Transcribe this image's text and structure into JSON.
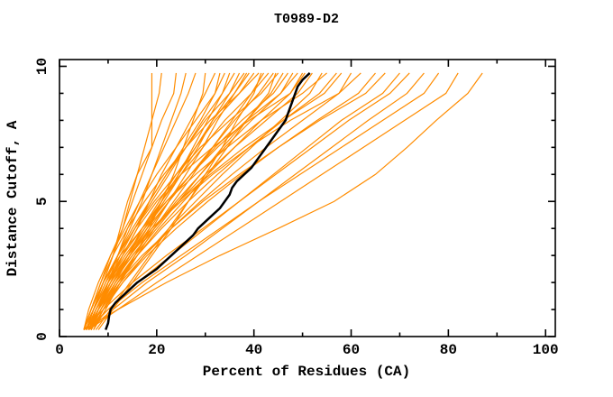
{
  "chart_data": {
    "type": "line",
    "title": "T0989-D2",
    "xlabel": "Percent of Residues (CA)",
    "ylabel": "Distance Cutoff, A",
    "xlim": [
      0,
      102
    ],
    "ylim": [
      0,
      10.25
    ],
    "grid": "off",
    "legend": "none",
    "x_major_ticks": [
      0,
      20,
      40,
      60,
      80,
      100
    ],
    "x_minor_ticks": [
      10,
      30,
      50,
      70,
      90
    ],
    "y_major_ticks": [
      0,
      5,
      10
    ],
    "y_minor_ticks": [
      1,
      2,
      3,
      4,
      6,
      7,
      8,
      9
    ],
    "colors": {
      "model_lines": "#ff8c00",
      "reference_line": "#000000",
      "frame": "#000000",
      "background": "#ffffff"
    },
    "cutoffs": [
      0.25,
      1,
      2,
      3,
      4,
      5,
      6,
      7,
      8,
      9,
      9.75
    ],
    "model_curves": [
      [
        5.5,
        7,
        9,
        11,
        12.5,
        14,
        16,
        19,
        19,
        19,
        19
      ],
      [
        5.5,
        7,
        9,
        11,
        13,
        14.5,
        16,
        17.5,
        19,
        20.5,
        21
      ],
      [
        5,
        6.5,
        8.5,
        10.5,
        13,
        15,
        17,
        19,
        21,
        23.5,
        24
      ],
      [
        6,
        8,
        10,
        12,
        14.5,
        17,
        19,
        21,
        23,
        25,
        26
      ],
      [
        5.5,
        7,
        9.5,
        12,
        14,
        16.5,
        19,
        21.5,
        24,
        26.5,
        28
      ],
      [
        7,
        9.5,
        12.5,
        15.5,
        18.5,
        21,
        23.5,
        25.5,
        27.5,
        29.5,
        30
      ],
      [
        6,
        7.5,
        10,
        13,
        16,
        18.5,
        21,
        24,
        27,
        30,
        32
      ],
      [
        6.5,
        8,
        10,
        12.5,
        15.5,
        18.5,
        22,
        25.5,
        29,
        32,
        33
      ],
      [
        5,
        6,
        8,
        10.5,
        13.5,
        16.5,
        20,
        24,
        28,
        32,
        34
      ],
      [
        6.5,
        8.5,
        11.5,
        14.5,
        18,
        21,
        24.5,
        27.5,
        30.5,
        33.5,
        35
      ],
      [
        5.5,
        7,
        9,
        12,
        15.5,
        19,
        22.5,
        26,
        29.5,
        33.5,
        36
      ],
      [
        6,
        8,
        11,
        14.5,
        18,
        21.5,
        25,
        28.5,
        31.5,
        35,
        37
      ],
      [
        5,
        6.5,
        9,
        12,
        15,
        18.5,
        22,
        26,
        30,
        35,
        38
      ],
      [
        7,
        9,
        12,
        15.5,
        19,
        22.5,
        26,
        29.5,
        32.5,
        36,
        38.5
      ],
      [
        5.5,
        7.5,
        10.5,
        14,
        17.5,
        21,
        24.5,
        28,
        31.5,
        36,
        39
      ],
      [
        6,
        8,
        11,
        14,
        17,
        20.5,
        24,
        28,
        32,
        37,
        40
      ],
      [
        5,
        6.5,
        8.5,
        11,
        14,
        17.5,
        21.5,
        26,
        31,
        37,
        41
      ],
      [
        8,
        11,
        15,
        19,
        23,
        26.5,
        30,
        33.5,
        36.5,
        40,
        41.5
      ],
      [
        6.5,
        9,
        12.5,
        16,
        19.5,
        23.5,
        27.5,
        31.5,
        35.5,
        39.5,
        42
      ],
      [
        5.5,
        7,
        9.5,
        13,
        17,
        21,
        25,
        29.5,
        34,
        39.5,
        43
      ],
      [
        6,
        8,
        11,
        14.5,
        18.5,
        22.5,
        27,
        31.5,
        36,
        41,
        44
      ],
      [
        7.5,
        10.5,
        14.5,
        18.5,
        22.5,
        26.5,
        30.5,
        34.5,
        38.5,
        43,
        44.5
      ],
      [
        5,
        6.5,
        9,
        12,
        15.5,
        19.5,
        24,
        29,
        35,
        41.5,
        45
      ],
      [
        6.5,
        8.5,
        11.5,
        15.5,
        20,
        24.5,
        29,
        33.5,
        38.5,
        43.5,
        46
      ],
      [
        5.5,
        7.5,
        10.5,
        14,
        18,
        22.5,
        27,
        32,
        37.5,
        44,
        47
      ],
      [
        6,
        8,
        11,
        15,
        19.5,
        24,
        29,
        34,
        39.5,
        45.5,
        48
      ],
      [
        5,
        7,
        10,
        13.5,
        17.5,
        22,
        27,
        32.5,
        38.5,
        45.5,
        49
      ],
      [
        6,
        8.5,
        12,
        16,
        20.5,
        25.5,
        30.5,
        36,
        41.5,
        47.5,
        50
      ],
      [
        6,
        8,
        10.5,
        13,
        16,
        20,
        25,
        31.5,
        39,
        47.5,
        50.5
      ],
      [
        5.5,
        7.5,
        11,
        15,
        19.5,
        24.5,
        30,
        36,
        42.5,
        49,
        52
      ],
      [
        6.5,
        9,
        13,
        17.5,
        22.5,
        28,
        33.5,
        39.5,
        45.5,
        51.5,
        54
      ],
      [
        5,
        6.5,
        9,
        12.5,
        17,
        22,
        28,
        34.5,
        41.5,
        50,
        55
      ],
      [
        6,
        8,
        11.5,
        16,
        21,
        26.5,
        32.5,
        39,
        46,
        53.5,
        57
      ],
      [
        5.5,
        7.5,
        10.5,
        14.5,
        19,
        24.5,
        31,
        38,
        46,
        54.5,
        58
      ],
      [
        6,
        8.5,
        12.5,
        17.5,
        23,
        29,
        35.5,
        42.5,
        50,
        57.5,
        60
      ],
      [
        5,
        7,
        10,
        14,
        19,
        25,
        31.5,
        39,
        47.5,
        57.5,
        62
      ],
      [
        6.5,
        9,
        13,
        18,
        24,
        30.5,
        37.5,
        45,
        53,
        61.5,
        65
      ],
      [
        5.5,
        8,
        12,
        17,
        23,
        29.5,
        37,
        45,
        53.5,
        63,
        67
      ],
      [
        6,
        10,
        16,
        23,
        30,
        37,
        44,
        51,
        58,
        66.5,
        70
      ],
      [
        5,
        9,
        15,
        22,
        29.5,
        37,
        44.5,
        52,
        59.5,
        68,
        72
      ],
      [
        6,
        11,
        18,
        26,
        33.5,
        41,
        48.5,
        56,
        63.5,
        71.5,
        75
      ],
      [
        5.5,
        10,
        17,
        25,
        33,
        41,
        49.5,
        58,
        66.5,
        75,
        78
      ],
      [
        6,
        12,
        20,
        28.5,
        37,
        45.5,
        54,
        62.5,
        71,
        79.5,
        82
      ],
      [
        5,
        12,
        22,
        33,
        45,
        56.5,
        65,
        71.5,
        77.5,
        84,
        87
      ]
    ],
    "reference_curve": {
      "cutoffs": [
        0.25,
        0.5,
        0.75,
        1,
        1.25,
        1.5,
        1.75,
        2,
        2.25,
        2.5,
        2.75,
        3,
        3.25,
        3.5,
        3.75,
        4,
        4.25,
        4.5,
        4.75,
        5,
        5.25,
        5.5,
        5.75,
        6,
        6.25,
        6.5,
        6.75,
        7,
        7.25,
        7.5,
        7.75,
        8,
        8.25,
        8.5,
        8.75,
        9,
        9.25,
        9.5,
        9.75
      ],
      "x": [
        9.5,
        10,
        10.2,
        10.5,
        11.5,
        13,
        14.5,
        16,
        18,
        20,
        21.5,
        23,
        24.5,
        26,
        27.5,
        28.5,
        30,
        31.5,
        33,
        34,
        35,
        35.5,
        36.5,
        38,
        39.5,
        40.5,
        41.5,
        42.5,
        43.5,
        44.5,
        45.5,
        46.5,
        47,
        47.5,
        48,
        48.5,
        49,
        50,
        51.5
      ]
    }
  }
}
